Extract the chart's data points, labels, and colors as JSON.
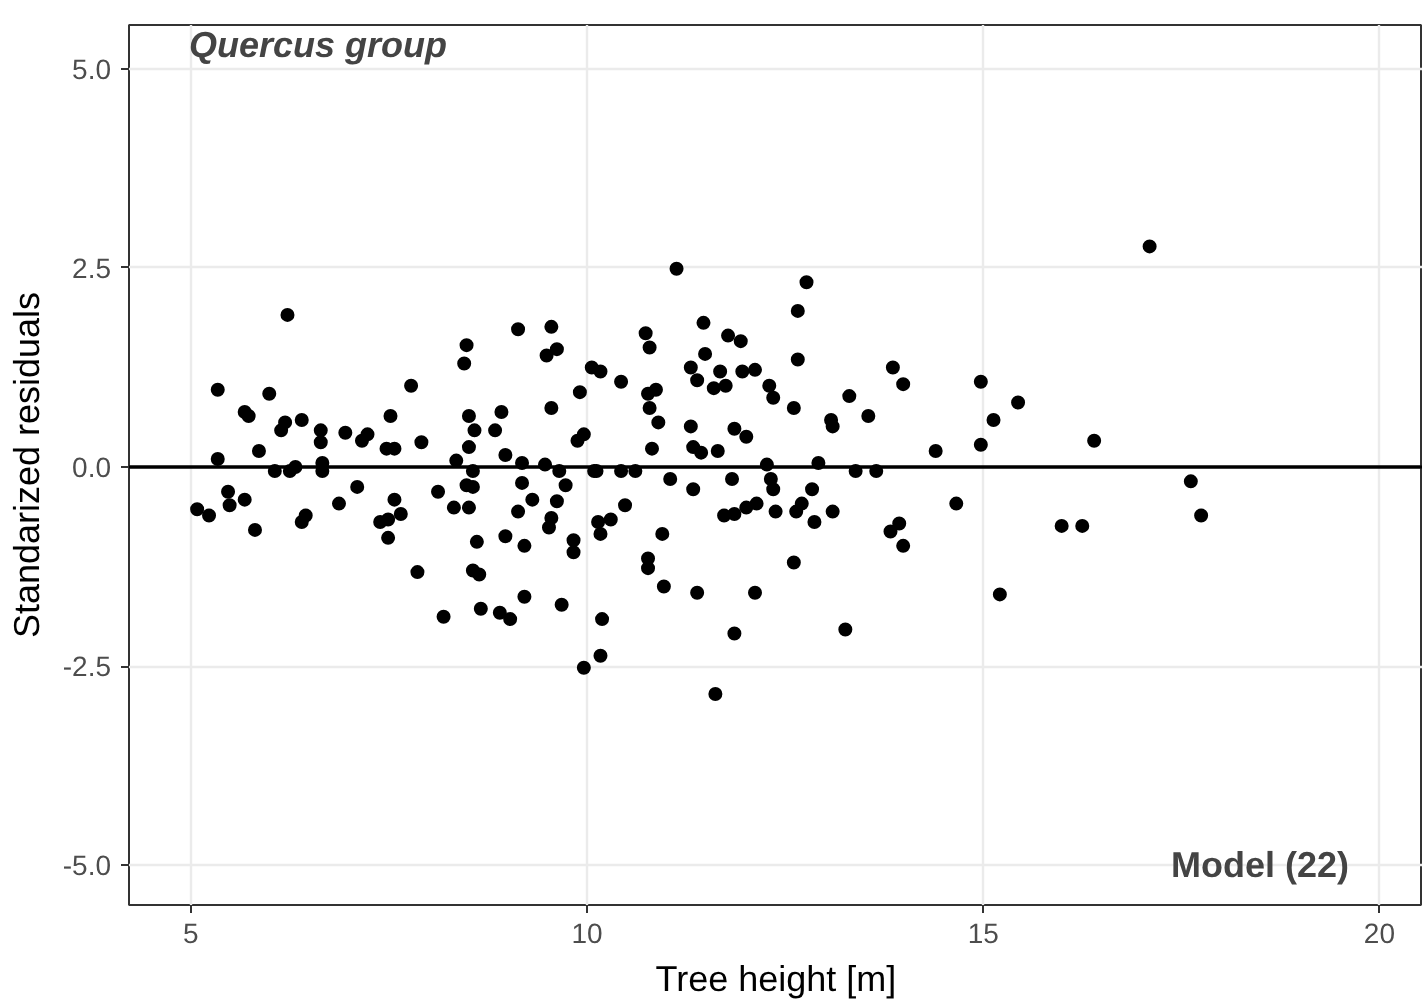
{
  "chart_data": {
    "type": "scatter",
    "title": "Quercus group",
    "xlabel": "Tree height [m]",
    "ylabel": "Standarized residuals",
    "annotations": [
      "Model (22)"
    ],
    "xlim": [
      4.22,
      20.55
    ],
    "ylim": [
      -5.5,
      5.55
    ],
    "xticks": [
      5,
      10,
      15,
      20
    ],
    "yticks": [
      {
        "value": -5,
        "label": "-5.0"
      },
      {
        "value": -2.5,
        "label": "-2.5"
      },
      {
        "value": 0,
        "label": "0.0"
      },
      {
        "value": 2.5,
        "label": "2.5"
      },
      {
        "value": 5,
        "label": "5.0"
      }
    ],
    "grid": true,
    "marker": "circle",
    "ref_lines": [
      {
        "axis": "y",
        "value": 0,
        "label": null,
        "color": "#000000"
      }
    ],
    "series": [
      {
        "color": "#000000",
        "x": [
          5.08,
          5.23,
          5.34,
          5.34,
          5.47,
          5.49,
          5.68,
          5.68,
          5.73,
          5.81,
          5.86,
          5.99,
          6.06,
          6.14,
          6.22,
          6.19,
          6.25,
          6.32,
          6.4,
          6.4,
          6.45,
          6.64,
          6.66,
          6.66,
          6.64,
          6.87,
          6.95,
          7.1,
          7.16,
          7.23,
          7.52,
          7.47,
          7.57,
          7.78,
          7.91,
          7.57,
          7.49,
          7.65,
          7.49,
          7.39,
          7.86,
          8.12,
          8.19,
          8.35,
          8.32,
          8.48,
          8.45,
          8.51,
          8.51,
          8.51,
          8.58,
          8.56,
          8.56,
          8.48,
          8.61,
          8.56,
          8.64,
          8.66,
          8.84,
          8.92,
          8.97,
          8.97,
          8.9,
          9.03,
          9.13,
          9.13,
          9.18,
          9.18,
          9.21,
          9.21,
          9.31,
          9.49,
          9.62,
          9.55,
          9.55,
          9.47,
          9.62,
          9.52,
          9.55,
          9.65,
          9.73,
          9.68,
          9.83,
          9.83,
          9.91,
          9.88,
          9.96,
          10.06,
          10.17,
          10.09,
          10.14,
          9.96,
          10.17,
          10.19,
          11.13,
          10.43,
          10.74,
          10.79,
          10.77,
          10.87,
          10.79,
          10.9,
          10.82,
          10.12,
          10.43,
          10.61,
          11.05,
          10.48,
          10.3,
          10.17,
          10.95,
          10.77,
          10.77,
          10.97,
          11.62,
          11.47,
          11.31,
          11.39,
          11.49,
          11.68,
          11.6,
          11.75,
          11.78,
          11.94,
          11.96,
          12.12,
          11.31,
          11.34,
          11.44,
          11.65,
          11.86,
          12.01,
          11.34,
          11.83,
          11.73,
          11.86,
          12.01,
          12.14,
          11.39,
          12.12,
          11.86,
          12.3,
          12.35,
          12.27,
          12.32,
          12.35,
          12.38,
          12.61,
          12.61,
          12.66,
          12.77,
          12.66,
          12.64,
          12.71,
          12.87,
          12.84,
          12.92,
          13.1,
          13.39,
          13.65,
          13.08,
          13.1,
          13.31,
          13.55,
          13.86,
          13.99,
          13.83,
          13.94,
          13.99,
          13.26,
          14.4,
          14.66,
          14.97,
          14.97,
          15.13,
          15.44,
          15.21,
          17.1,
          16.4,
          15.99,
          16.25,
          17.62,
          17.75
        ],
        "values": [
          -0.53,
          -0.61,
          0.97,
          0.1,
          -0.31,
          -0.48,
          -0.41,
          0.69,
          0.64,
          -0.79,
          0.2,
          0.92,
          -0.05,
          0.46,
          1.91,
          0.56,
          -0.05,
          0.0,
          0.59,
          -0.69,
          -0.61,
          0.31,
          0.05,
          -0.05,
          0.46,
          -0.46,
          0.43,
          -0.25,
          0.33,
          0.41,
          0.64,
          0.23,
          0.23,
          1.02,
          0.31,
          -0.41,
          -0.66,
          -0.59,
          -0.89,
          -0.69,
          -1.32,
          -0.31,
          -1.88,
          0.08,
          -0.51,
          1.53,
          1.3,
          -0.51,
          0.64,
          0.25,
          0.46,
          -0.05,
          -0.25,
          -0.23,
          -0.94,
          -1.3,
          -1.35,
          -1.78,
          0.46,
          0.69,
          0.15,
          -0.87,
          -1.83,
          -1.91,
          1.73,
          -0.56,
          -0.2,
          0.05,
          -0.99,
          -1.63,
          -0.41,
          1.4,
          1.48,
          1.76,
          0.74,
          0.03,
          -0.43,
          -0.76,
          -0.64,
          -0.05,
          -0.23,
          -1.73,
          -0.92,
          -1.07,
          0.94,
          0.33,
          0.41,
          1.25,
          1.2,
          -0.05,
          -0.69,
          -2.52,
          -2.37,
          -1.91,
          2.49,
          1.07,
          1.68,
          1.5,
          0.92,
          0.97,
          0.74,
          0.56,
          0.23,
          -0.05,
          -0.05,
          -0.05,
          -0.15,
          -0.48,
          -0.66,
          -0.84,
          -0.84,
          -1.15,
          -1.27,
          -1.5,
          -2.85,
          1.81,
          1.25,
          1.09,
          1.42,
          1.2,
          0.99,
          1.02,
          1.65,
          1.58,
          1.2,
          1.22,
          0.51,
          0.25,
          0.18,
          0.2,
          0.48,
          0.38,
          -0.28,
          -0.15,
          -0.61,
          -0.59,
          -0.51,
          -0.46,
          -1.58,
          -1.58,
          -2.09,
          1.02,
          0.87,
          0.03,
          -0.15,
          -0.28,
          -0.56,
          0.74,
          -1.2,
          1.96,
          2.32,
          1.35,
          -0.56,
          -0.46,
          -0.69,
          -0.28,
          0.05,
          -0.56,
          -0.05,
          -0.05,
          0.59,
          0.51,
          0.89,
          0.64,
          1.25,
          1.04,
          -0.81,
          -0.71,
          -0.99,
          -2.04,
          0.2,
          -0.46,
          1.07,
          0.28,
          0.59,
          0.81,
          -1.6,
          2.77,
          0.33,
          -0.74,
          -0.74,
          -0.18,
          -0.61
        ]
      }
    ]
  }
}
